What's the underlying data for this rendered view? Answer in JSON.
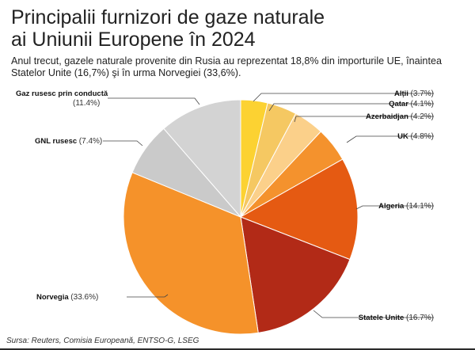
{
  "header": {
    "title_line1": "Principalii furnizori de gaze naturale",
    "title_line2": "ai Uniunii Europene în 2024",
    "subtitle_line1": "Anul trecut, gazele naturale provenite din Rusia au reprezentat 18,8% din importurile UE, înaintea",
    "subtitle_line2": "Statelor Unite (16,7%) şi în urma Norvegiei (33,6%)."
  },
  "footer": {
    "source": "Sursa: Reuters, Comisia Europeană, ENTSO-G, LSEG"
  },
  "chart_data": {
    "type": "pie",
    "unit": "%",
    "slices": [
      {
        "name": "Alții",
        "value": 3.7,
        "label": "(3.7%)",
        "color": "#fcd232"
      },
      {
        "name": "Qatar",
        "value": 4.1,
        "label": "(4.1%)",
        "color": "#f5c862"
      },
      {
        "name": "Azerbaidjan",
        "value": 4.2,
        "label": "(4.2%)",
        "color": "#fbd08a"
      },
      {
        "name": "UK",
        "value": 4.8,
        "label": "(4.8%)",
        "color": "#f4922d"
      },
      {
        "name": "Algeria",
        "value": 14.1,
        "label": "(14.1%)",
        "color": "#e55a12"
      },
      {
        "name": "Statele Unite",
        "value": 16.7,
        "label": "(16.7%)",
        "color": "#b22a17"
      },
      {
        "name": "Norvegia",
        "value": 33.6,
        "label": "(33.6%)",
        "color": "#f5922a"
      },
      {
        "name": "GNL rusesc",
        "value": 7.4,
        "label": "(7.4%)",
        "color": "#cacaca"
      },
      {
        "name": "Gaz rusesc prin conductă",
        "value": 11.4,
        "label": "(11.4%)",
        "color": "#d3d3d3"
      }
    ]
  }
}
